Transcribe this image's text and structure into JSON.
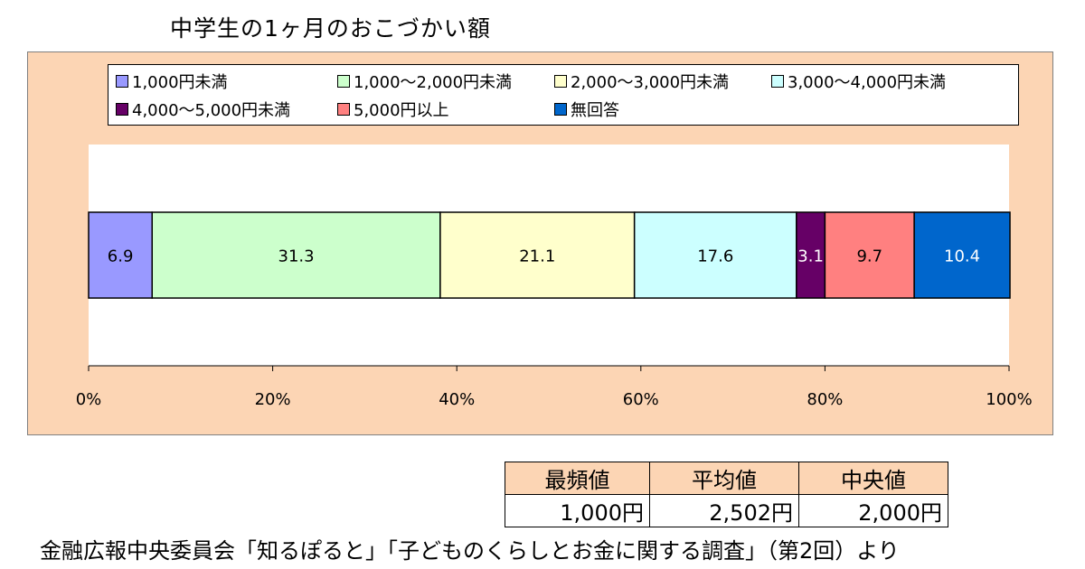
{
  "title": "中学生の1ヶ月のおこづかい額",
  "legend": [
    {
      "label": "1,000円未満",
      "color": "#9999ff"
    },
    {
      "label": "1,000～2,000円未満",
      "color": "#ccffcc"
    },
    {
      "label": "2,000～3,000円未満",
      "color": "#ffffcc"
    },
    {
      "label": "3,000～4,000円未満",
      "color": "#ccffff"
    },
    {
      "label": "4,000～5,000円未満",
      "color": "#660066"
    },
    {
      "label": "5,000円以上",
      "color": "#ff8080"
    },
    {
      "label": "無回答",
      "color": "#0066cc"
    }
  ],
  "chart_data": {
    "type": "bar",
    "orientation": "horizontal-stacked-100",
    "title": "中学生の1ヶ月のおこづかい額",
    "series": [
      {
        "name": "1,000円未満",
        "values": [
          6.9
        ]
      },
      {
        "name": "1,000～2,000円未満",
        "values": [
          31.3
        ]
      },
      {
        "name": "2,000～3,000円未満",
        "values": [
          21.1
        ]
      },
      {
        "name": "3,000～4,000円未満",
        "values": [
          17.6
        ]
      },
      {
        "name": "4,000～5,000円未満",
        "values": [
          3.1
        ]
      },
      {
        "name": "5,000円以上",
        "values": [
          9.7
        ]
      },
      {
        "name": "無回答",
        "values": [
          10.4
        ]
      }
    ],
    "data_labels": [
      "6.9",
      "31.3",
      "21.1",
      "17.6",
      "3.1",
      "9.7",
      "10.4"
    ],
    "xlim": [
      0,
      100
    ],
    "x_ticks": [
      "0%",
      "20%",
      "40%",
      "60%",
      "80%",
      "100%"
    ],
    "legend_position": "top",
    "grid": false
  },
  "table": {
    "headers": [
      "最頻値",
      "平均値",
      "中央値"
    ],
    "values": [
      "1,000円",
      "2,502円",
      "2,000円"
    ]
  },
  "source": "金融広報中央委員会「知るぽると」「子どものくらしとお金に関する調査」（第2回）より"
}
